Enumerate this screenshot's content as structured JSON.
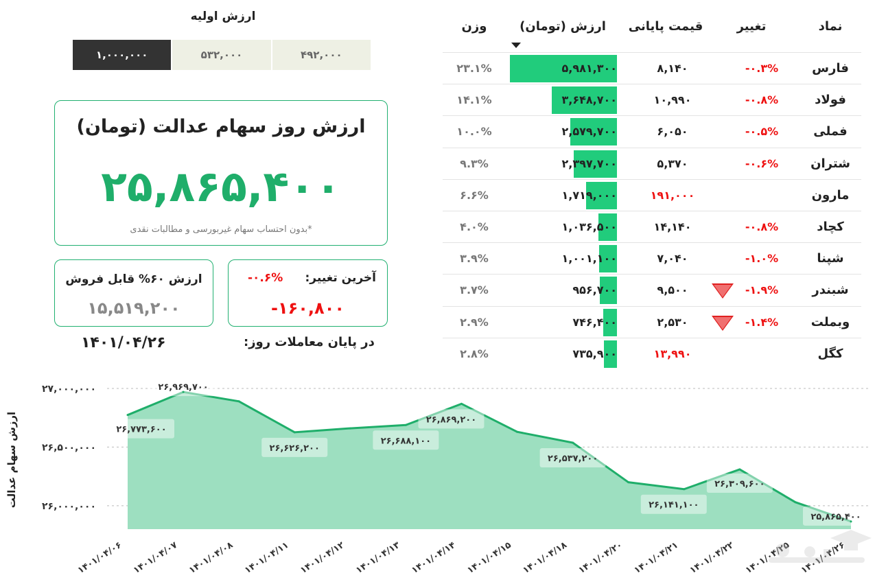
{
  "initial_value": {
    "title": "ارزش اولیه",
    "options": [
      "۱,۰۰۰,۰۰۰",
      "۵۳۲,۰۰۰",
      "۴۹۲,۰۰۰"
    ],
    "selected_index": 0
  },
  "main_card": {
    "title": "ارزش روز سهام عدالت (تومان)",
    "value": "۲۵,۸۶۵,۴۰۰",
    "note": "*بدون احتساب سهام غیربورسی و مطالبات نقدی"
  },
  "sellable_card": {
    "title": "ارزش ۶۰% قابل فروش",
    "value": "۱۵,۵۱۹,۲۰۰"
  },
  "change_card": {
    "label": "آخرین تغییر:",
    "pct": "-۰.۶%",
    "value": "-۱۶۰,۸۰۰"
  },
  "end_of_day": {
    "label": "در پایان معاملات روز:",
    "date": "۱۴۰۱/۰۴/۲۶"
  },
  "table": {
    "headers": {
      "symbol": "نماد",
      "change": "تغییر",
      "price": "قیمت پایانی",
      "value": "ارزش (تومان)",
      "weight": "وزن"
    },
    "rows": [
      {
        "symbol": "فارس",
        "change": "-۰.۳%",
        "price": "۸,۱۴۰",
        "price_red": false,
        "value": "۵,۹۸۱,۳۰۰",
        "weight": "۲۳.۱%",
        "w": 23.1,
        "arrow": false
      },
      {
        "symbol": "فولاد",
        "change": "-۰.۸%",
        "price": "۱۰,۹۹۰",
        "price_red": false,
        "value": "۳,۶۴۸,۷۰۰",
        "weight": "۱۴.۱%",
        "w": 14.1,
        "arrow": false
      },
      {
        "symbol": "فملی",
        "change": "-۰.۵%",
        "price": "۶,۰۵۰",
        "price_red": false,
        "value": "۲,۵۷۹,۷۰۰",
        "weight": "۱۰.۰%",
        "w": 10.0,
        "arrow": false
      },
      {
        "symbol": "شتران",
        "change": "-۰.۶%",
        "price": "۵,۳۷۰",
        "price_red": false,
        "value": "۲,۳۹۷,۷۰۰",
        "weight": "۹.۳%",
        "w": 9.3,
        "arrow": false
      },
      {
        "symbol": "مارون",
        "change": "",
        "price": "۱۹۱,۰۰۰",
        "price_red": true,
        "value": "۱,۷۱۹,۰۰۰",
        "weight": "۶.۶%",
        "w": 6.6,
        "arrow": false
      },
      {
        "symbol": "کچاد",
        "change": "-۰.۸%",
        "price": "۱۴,۱۴۰",
        "price_red": false,
        "value": "۱,۰۳۶,۵۰۰",
        "weight": "۴.۰%",
        "w": 4.0,
        "arrow": false
      },
      {
        "symbol": "شپنا",
        "change": "-۱.۰%",
        "price": "۷,۰۴۰",
        "price_red": false,
        "value": "۱,۰۰۱,۱۰۰",
        "weight": "۳.۹%",
        "w": 3.9,
        "arrow": false
      },
      {
        "symbol": "شبندر",
        "change": "-۱.۹%",
        "price": "۹,۵۰۰",
        "price_red": false,
        "value": "۹۵۶,۷۰۰",
        "weight": "۳.۷%",
        "w": 3.7,
        "arrow": true
      },
      {
        "symbol": "وبملت",
        "change": "-۱.۴%",
        "price": "۲,۵۳۰",
        "price_red": false,
        "value": "۷۴۶,۴۰۰",
        "weight": "۲.۹%",
        "w": 2.9,
        "arrow": true
      },
      {
        "symbol": "کگل",
        "change": "",
        "price": "۱۳,۹۹۰",
        "price_red": true,
        "value": "۷۳۵,۹۰۰",
        "weight": "۲.۸%",
        "w": 2.8,
        "arrow": false
      }
    ]
  },
  "chart_data": {
    "type": "area",
    "ylabel": "ارزش سهام عدالت",
    "ylim": [
      25800000,
      27000000
    ],
    "yticks": [
      26000000,
      26500000,
      27000000
    ],
    "ytick_labels": [
      "۲۶,۰۰۰,۰۰۰",
      "۲۶,۵۰۰,۰۰۰",
      "۲۷,۰۰۰,۰۰۰"
    ],
    "x": [
      "۱۴۰۱/۰۴/۰۶",
      "۱۴۰۱/۰۴/۰۷",
      "۱۴۰۱/۰۴/۰۸",
      "۱۴۰۱/۰۴/۱۱",
      "۱۴۰۱/۰۴/۱۲",
      "۱۴۰۱/۰۴/۱۳",
      "۱۴۰۱/۰۴/۱۴",
      "۱۴۰۱/۰۴/۱۵",
      "۱۴۰۱/۰۴/۱۸",
      "۱۴۰۱/۰۴/۲۰",
      "۱۴۰۱/۰۴/۲۱",
      "۱۴۰۱/۰۴/۲۲",
      "۱۴۰۱/۰۴/۲۵",
      "۱۴۰۱/۰۴/۲۶"
    ],
    "values": [
      26773600,
      26969700,
      26890000,
      26626200,
      26660000,
      26688100,
      26869200,
      26630000,
      26537200,
      26200000,
      26141100,
      26309600,
      26030000,
      25865400
    ],
    "labels": [
      "۲۶,۷۷۳,۶۰۰",
      "۲۶,۹۶۹,۷۰۰",
      "",
      "۲۶,۶۲۶,۲۰۰",
      "",
      "۲۶,۶۸۸,۱۰۰",
      "۲۶,۸۶۹,۲۰۰",
      "",
      "۲۶,۵۳۷,۲۰۰",
      "",
      "۲۶,۱۴۱,۱۰۰",
      "۲۶,۳۰۹,۶۰۰",
      "",
      "۲۵,۸۶۵,۴۰۰"
    ],
    "colors": {
      "line": "#1fae6a",
      "fill": "#9ddfc0"
    }
  },
  "watermark": "سلامت نیوز"
}
